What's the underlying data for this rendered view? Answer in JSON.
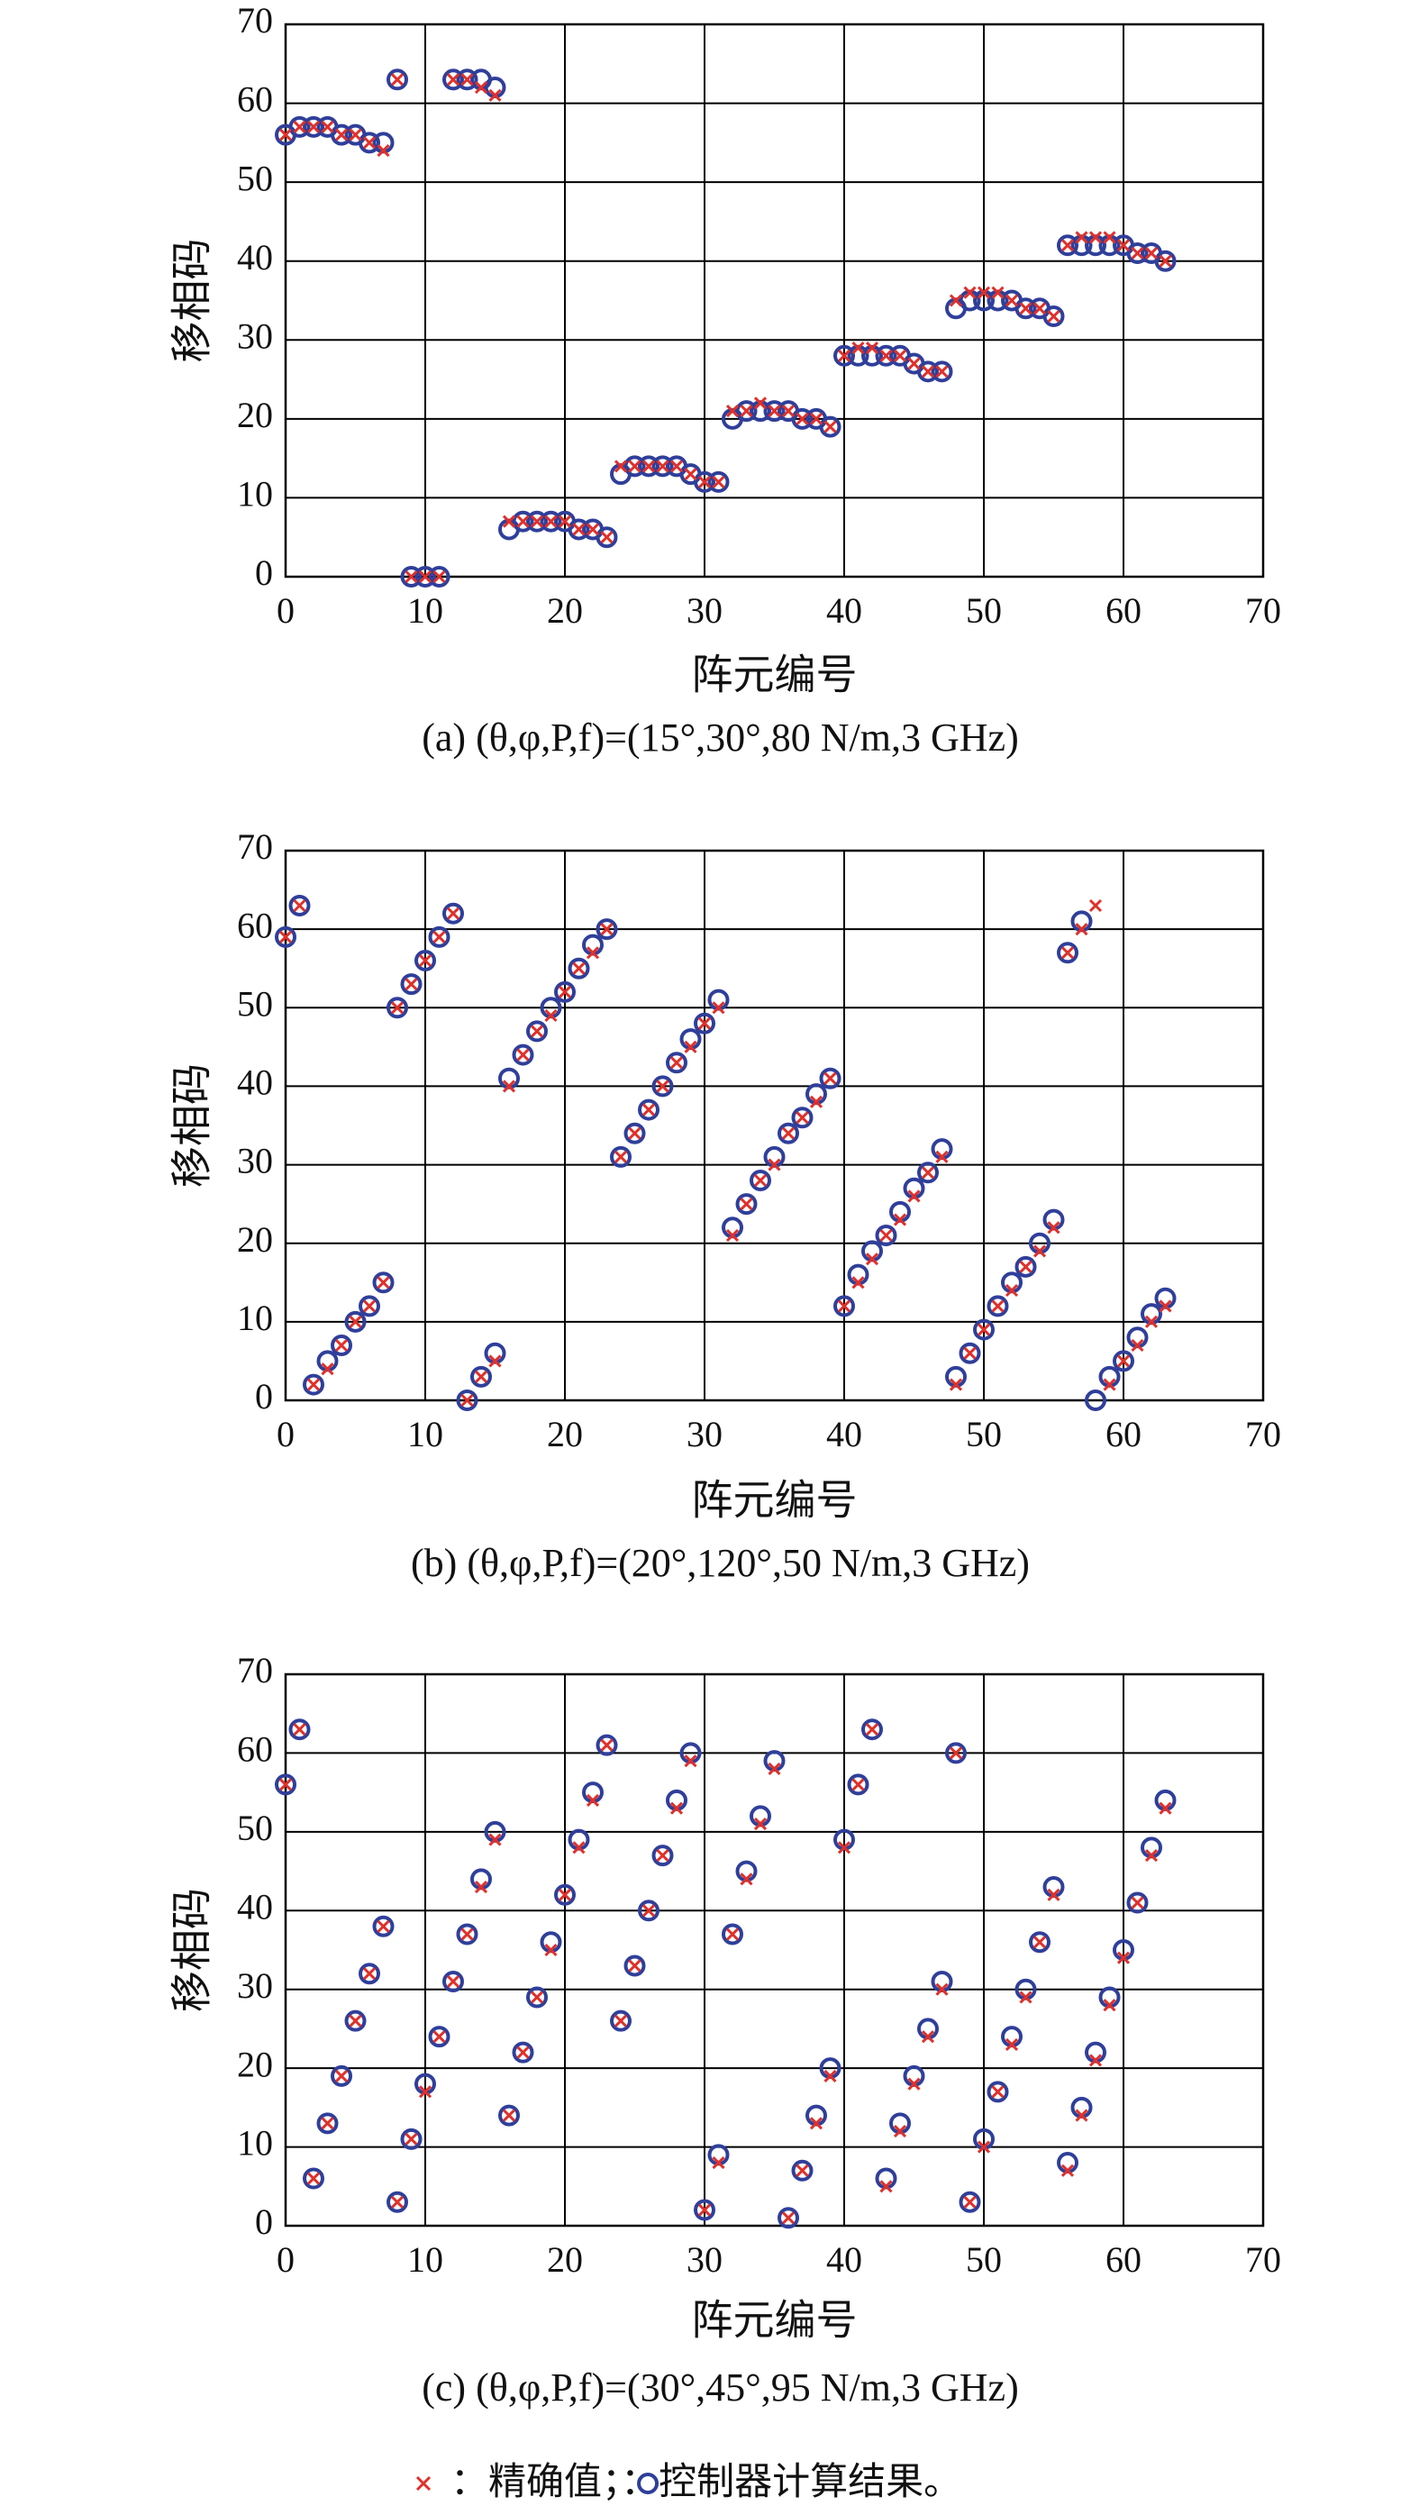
{
  "chart_data": [
    {
      "type": "scatter",
      "caption": "(a) (θ,φ,P,f)=(15°,30°,80 N/m,3 GHz)",
      "xlabel": "阵元编号",
      "ylabel": "移相码",
      "x": [
        0,
        1,
        2,
        3,
        4,
        5,
        6,
        7,
        8,
        9,
        10,
        11,
        12,
        13,
        14,
        15,
        16,
        17,
        18,
        19,
        20,
        21,
        22,
        23,
        24,
        25,
        26,
        27,
        28,
        29,
        30,
        31,
        32,
        33,
        34,
        35,
        36,
        37,
        38,
        39,
        40,
        41,
        42,
        43,
        44,
        45,
        46,
        47,
        48,
        49,
        50,
        51,
        52,
        53,
        54,
        55,
        56,
        57,
        58,
        59,
        60,
        61,
        62,
        63
      ],
      "series": [
        {
          "name": "精确值",
          "color": "#e0302a",
          "values": [
            56,
            57,
            57,
            57,
            56,
            56,
            55,
            54,
            63,
            0,
            0,
            0,
            63,
            63,
            62,
            61,
            7,
            7,
            7,
            7,
            7,
            6,
            6,
            5,
            14,
            14,
            14,
            14,
            14,
            13,
            12,
            12,
            21,
            21,
            22,
            21,
            21,
            20,
            20,
            19,
            28,
            29,
            29,
            28,
            28,
            27,
            26,
            26,
            35,
            36,
            36,
            36,
            35,
            34,
            34,
            33,
            42,
            43,
            43,
            43,
            42,
            41,
            41,
            40
          ]
        },
        {
          "name": "控制器计算结果",
          "color": "#2f3f9a",
          "values": [
            56,
            57,
            57,
            57,
            56,
            56,
            55,
            55,
            63,
            0,
            0,
            0,
            63,
            63,
            63,
            62,
            6,
            7,
            7,
            7,
            7,
            6,
            6,
            5,
            13,
            14,
            14,
            14,
            14,
            13,
            12,
            12,
            20,
            21,
            21,
            21,
            21,
            20,
            20,
            19,
            28,
            28,
            28,
            28,
            28,
            27,
            26,
            26,
            34,
            35,
            35,
            35,
            35,
            34,
            34,
            33,
            42,
            42,
            42,
            42,
            42,
            41,
            41,
            40
          ]
        }
      ],
      "xlim": [
        0,
        70
      ],
      "ylim": [
        0,
        70
      ],
      "xticks": [
        0,
        10,
        20,
        30,
        40,
        50,
        60,
        70
      ],
      "yticks": [
        0,
        10,
        20,
        30,
        40,
        50,
        60,
        70
      ],
      "grid": true
    },
    {
      "type": "scatter",
      "caption": "(b) (θ,φ,P,f)=(20°,120°,50 N/m,3 GHz)",
      "xlabel": "阵元编号",
      "ylabel": "移相码",
      "x": [
        0,
        1,
        2,
        3,
        4,
        5,
        6,
        7,
        8,
        9,
        10,
        11,
        12,
        13,
        14,
        15,
        16,
        17,
        18,
        19,
        20,
        21,
        22,
        23,
        24,
        25,
        26,
        27,
        28,
        29,
        30,
        31,
        32,
        33,
        34,
        35,
        36,
        37,
        38,
        39,
        40,
        41,
        42,
        43,
        44,
        45,
        46,
        47,
        48,
        49,
        50,
        51,
        52,
        53,
        54,
        55,
        56,
        57,
        58,
        59,
        60,
        61,
        62,
        63
      ],
      "series": [
        {
          "name": "精确值",
          "color": "#e0302a",
          "values": [
            59,
            63,
            2,
            4,
            7,
            10,
            12,
            15,
            50,
            53,
            56,
            59,
            62,
            0,
            3,
            5,
            40,
            44,
            47,
            49,
            52,
            55,
            57,
            60,
            31,
            34,
            37,
            40,
            43,
            45,
            48,
            50,
            21,
            25,
            28,
            30,
            34,
            36,
            38,
            41,
            12,
            15,
            18,
            21,
            23,
            26,
            29,
            31,
            2,
            6,
            9,
            12,
            14,
            17,
            19,
            22,
            57,
            60,
            63,
            2,
            5,
            7,
            10,
            12
          ]
        },
        {
          "name": "控制器计算结果",
          "color": "#2f3f9a",
          "values": [
            59,
            63,
            2,
            5,
            7,
            10,
            12,
            15,
            50,
            53,
            56,
            59,
            62,
            0,
            3,
            6,
            41,
            44,
            47,
            50,
            52,
            55,
            58,
            60,
            31,
            34,
            37,
            40,
            43,
            46,
            48,
            51,
            22,
            25,
            28,
            31,
            34,
            36,
            39,
            41,
            12,
            16,
            19,
            21,
            24,
            27,
            29,
            32,
            3,
            6,
            9,
            12,
            15,
            17,
            20,
            23,
            57,
            61,
            0,
            3,
            5,
            8,
            11,
            13
          ]
        }
      ],
      "xlim": [
        0,
        70
      ],
      "ylim": [
        0,
        70
      ],
      "xticks": [
        0,
        10,
        20,
        30,
        40,
        50,
        60,
        70
      ],
      "yticks": [
        0,
        10,
        20,
        30,
        40,
        50,
        60,
        70
      ],
      "grid": true
    },
    {
      "type": "scatter",
      "caption": "(c) (θ,φ,P,f)=(30°,45°,95 N/m,3 GHz)",
      "xlabel": "阵元编号",
      "ylabel": "移相码",
      "x": [
        0,
        1,
        2,
        3,
        4,
        5,
        6,
        7,
        8,
        9,
        10,
        11,
        12,
        13,
        14,
        15,
        16,
        17,
        18,
        19,
        20,
        21,
        22,
        23,
        24,
        25,
        26,
        27,
        28,
        29,
        30,
        31,
        32,
        33,
        34,
        35,
        36,
        37,
        38,
        39,
        40,
        41,
        42,
        43,
        44,
        45,
        46,
        47,
        48,
        49,
        50,
        51,
        52,
        53,
        54,
        55,
        56,
        57,
        58,
        59,
        60,
        61,
        62,
        63
      ],
      "series": [
        {
          "name": "精确值",
          "color": "#e0302a",
          "values": [
            56,
            63,
            6,
            13,
            19,
            26,
            32,
            38,
            3,
            11,
            17,
            24,
            31,
            37,
            43,
            49,
            14,
            22,
            29,
            35,
            42,
            48,
            54,
            61,
            26,
            33,
            40,
            47,
            53,
            59,
            2,
            8,
            37,
            44,
            51,
            58,
            1,
            7,
            13,
            19,
            48,
            56,
            63,
            5,
            12,
            18,
            24,
            30,
            60,
            3,
            10,
            17,
            23,
            29,
            36,
            42,
            7,
            14,
            21,
            28,
            34,
            41,
            47,
            53
          ]
        },
        {
          "name": "控制器计算结果",
          "color": "#2f3f9a",
          "values": [
            56,
            63,
            6,
            13,
            19,
            26,
            32,
            38,
            3,
            11,
            18,
            24,
            31,
            37,
            44,
            50,
            14,
            22,
            29,
            36,
            42,
            49,
            55,
            61,
            26,
            33,
            40,
            47,
            54,
            60,
            2,
            9,
            37,
            45,
            52,
            59,
            1,
            7,
            14,
            20,
            49,
            56,
            63,
            6,
            13,
            19,
            25,
            31,
            60,
            3,
            11,
            17,
            24,
            30,
            36,
            43,
            8,
            15,
            22,
            29,
            35,
            41,
            48,
            54
          ]
        }
      ],
      "xlim": [
        0,
        70
      ],
      "ylim": [
        0,
        70
      ],
      "xticks": [
        0,
        10,
        20,
        30,
        40,
        50,
        60,
        70
      ],
      "yticks": [
        0,
        10,
        20,
        30,
        40,
        50,
        60,
        70
      ],
      "grid": true
    }
  ],
  "legend_punctuation": [
    "：",
    "；",
    "：",
    "。"
  ]
}
